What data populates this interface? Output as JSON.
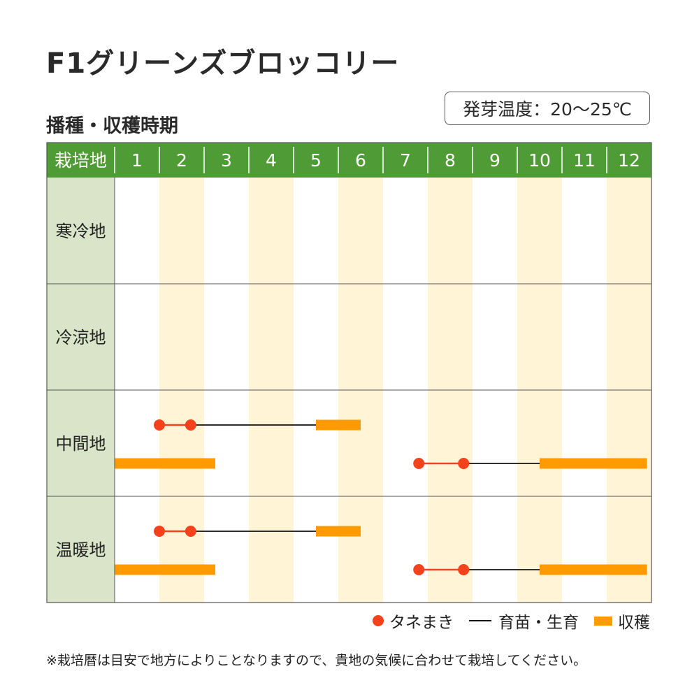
{
  "title": "F1グリーンズブロッコリー",
  "subtitle": "播種・収穫時期",
  "temperature_badge": "発芽温度：20〜25℃",
  "legend": {
    "sowing": "タネまき",
    "growing": "育苗・生育",
    "harvest": "収穫"
  },
  "footnote": "※栽培暦は目安で地方によりことなりますので、貴地の気候に合わせて栽培してください。",
  "colors": {
    "header_green": "#4f9b35",
    "label_col": "#d9e4c8",
    "stripe": "#fff4d6",
    "sowing": "#f5411c",
    "growing": "#111111",
    "harvest": "#ff9a00"
  },
  "chart_data": {
    "type": "gantt",
    "header_label": "栽培地",
    "months": [
      "1",
      "2",
      "3",
      "4",
      "5",
      "6",
      "7",
      "8",
      "9",
      "10",
      "11",
      "12"
    ],
    "regions": [
      {
        "name": "寒冷地",
        "tracks": []
      },
      {
        "name": "冷涼地",
        "tracks": []
      },
      {
        "name": "中間地",
        "tracks": [
          {
            "sow": [
              2.0,
              2.7
            ],
            "grow": [
              2.7,
              5.5
            ],
            "harvest": [
              5.5,
              6.5
            ]
          },
          {
            "harvest": [
              1.0,
              3.25
            ]
          },
          {
            "sow": [
              7.8,
              8.8
            ],
            "grow": [
              8.8,
              10.5
            ],
            "harvest": [
              10.5,
              12.9
            ]
          }
        ]
      },
      {
        "name": "温暖地",
        "tracks": [
          {
            "sow": [
              2.0,
              2.7
            ],
            "grow": [
              2.7,
              5.5
            ],
            "harvest": [
              5.5,
              6.5
            ]
          },
          {
            "harvest": [
              1.0,
              3.25
            ]
          },
          {
            "sow": [
              7.8,
              8.8
            ],
            "grow": [
              8.8,
              10.5
            ],
            "harvest": [
              10.5,
              12.9
            ]
          }
        ]
      }
    ]
  }
}
